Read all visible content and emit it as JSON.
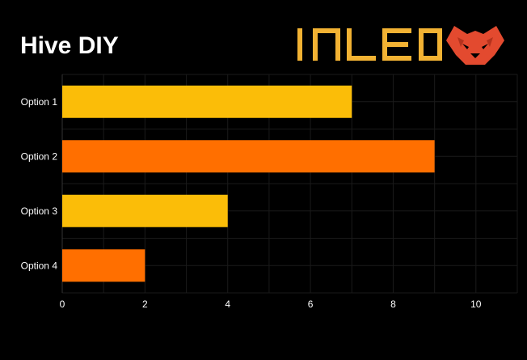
{
  "title": "Hive DIY",
  "logo": {
    "wordmark": "INLEO",
    "icon": "lion-head-icon"
  },
  "colors": {
    "background": "#000000",
    "bar_primary": "#fbbd08",
    "bar_secondary": "#ff6f00",
    "text": "#ffffff",
    "grid": "#1a1a1a",
    "logo_wordmark": "#f2b233",
    "logo_icon": "#e34a2f"
  },
  "chart_data": {
    "type": "bar",
    "orientation": "horizontal",
    "categories": [
      "Option 1",
      "Option 2",
      "Option 3",
      "Option 4"
    ],
    "values": [
      7,
      9,
      4,
      2
    ],
    "xticks": [
      "0",
      "2",
      "4",
      "6",
      "8",
      "10"
    ],
    "xlim": [
      0,
      11
    ],
    "grid": true,
    "bar_colors": [
      "#fbbd08",
      "#ff6f00",
      "#fbbd08",
      "#ff6f00"
    ]
  }
}
